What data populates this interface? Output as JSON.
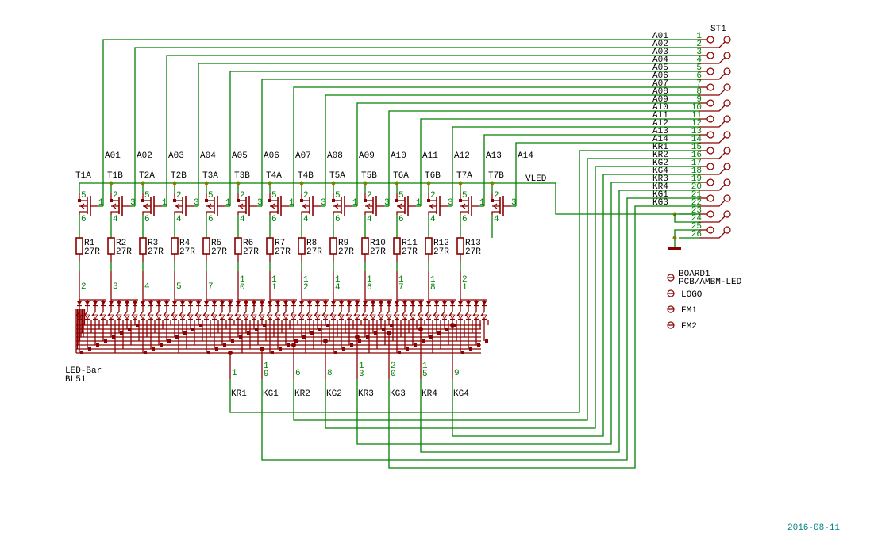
{
  "colors": {
    "wire": "#008000",
    "part": "#8c0000",
    "junction": "#808000",
    "text": "#000000",
    "date": "#008080"
  },
  "supply_net": "VLED",
  "signal_nets": [
    "A01",
    "A02",
    "A03",
    "A04",
    "A05",
    "A06",
    "A07",
    "A08",
    "A09",
    "A10",
    "A11",
    "A12",
    "A13",
    "A14"
  ],
  "transistors": [
    {
      "name": "T1A",
      "pins": [
        "5",
        "1",
        "6"
      ]
    },
    {
      "name": "T1B",
      "pins": [
        "2",
        "3",
        "4"
      ]
    },
    {
      "name": "T2A",
      "pins": [
        "5",
        "1",
        "6"
      ]
    },
    {
      "name": "T2B",
      "pins": [
        "2",
        "3",
        "4"
      ]
    },
    {
      "name": "T3A",
      "pins": [
        "5",
        "1",
        "6"
      ]
    },
    {
      "name": "T3B",
      "pins": [
        "2",
        "3",
        "4"
      ]
    },
    {
      "name": "T4A",
      "pins": [
        "5",
        "1",
        "6"
      ]
    },
    {
      "name": "T4B",
      "pins": [
        "2",
        "3",
        "4"
      ]
    },
    {
      "name": "T5A",
      "pins": [
        "5",
        "1",
        "6"
      ]
    },
    {
      "name": "T5B",
      "pins": [
        "2",
        "3",
        "4"
      ]
    },
    {
      "name": "T6A",
      "pins": [
        "5",
        "1",
        "6"
      ]
    },
    {
      "name": "T6B",
      "pins": [
        "2",
        "3",
        "4"
      ]
    },
    {
      "name": "T7A",
      "pins": [
        "5",
        "1",
        "6"
      ]
    },
    {
      "name": "T7B",
      "pins": [
        "2",
        "3",
        "4"
      ]
    }
  ],
  "resistors": [
    {
      "name": "R1",
      "value": "27R"
    },
    {
      "name": "R2",
      "value": "27R"
    },
    {
      "name": "R3",
      "value": "27R"
    },
    {
      "name": "R4",
      "value": "27R"
    },
    {
      "name": "R5",
      "value": "27R"
    },
    {
      "name": "R6",
      "value": "27R"
    },
    {
      "name": "R7",
      "value": "27R"
    },
    {
      "name": "R8",
      "value": "27R"
    },
    {
      "name": "R9",
      "value": "27R"
    },
    {
      "name": "R10",
      "value": "27R"
    },
    {
      "name": "R11",
      "value": "27R"
    },
    {
      "name": "R12",
      "value": "27R"
    },
    {
      "name": "R13",
      "value": "27R"
    }
  ],
  "led_bar": {
    "name": "LED-Bar",
    "value": "BL51",
    "anode_pins": [
      "2",
      "3",
      "4",
      "5",
      "7",
      "10",
      "11",
      "12",
      "14",
      "16",
      "17",
      "18",
      "21"
    ],
    "cathodes": [
      {
        "pin": "1",
        "net": "KR1"
      },
      {
        "pin": "19",
        "net": "KG1"
      },
      {
        "pin": "6",
        "net": "KR2"
      },
      {
        "pin": "8",
        "net": "KG2"
      },
      {
        "pin": "13",
        "net": "KR3"
      },
      {
        "pin": "20",
        "net": "KG3"
      },
      {
        "pin": "15",
        "net": "KR4"
      },
      {
        "pin": "9",
        "net": "KG4"
      }
    ]
  },
  "connector": {
    "name": "ST1",
    "pins": [
      {
        "num": "1",
        "net": "A01"
      },
      {
        "num": "2",
        "net": "A02"
      },
      {
        "num": "3",
        "net": "A03"
      },
      {
        "num": "4",
        "net": "A04"
      },
      {
        "num": "5",
        "net": "A05"
      },
      {
        "num": "6",
        "net": "A06"
      },
      {
        "num": "7",
        "net": "A07"
      },
      {
        "num": "8",
        "net": "A08"
      },
      {
        "num": "9",
        "net": "A09"
      },
      {
        "num": "10",
        "net": "A10"
      },
      {
        "num": "11",
        "net": "A11"
      },
      {
        "num": "12",
        "net": "A12"
      },
      {
        "num": "13",
        "net": "A13"
      },
      {
        "num": "14",
        "net": "A14"
      },
      {
        "num": "15",
        "net": "KR1"
      },
      {
        "num": "16",
        "net": "KR2"
      },
      {
        "num": "17",
        "net": "KG2"
      },
      {
        "num": "18",
        "net": "KG4"
      },
      {
        "num": "19",
        "net": "KR3"
      },
      {
        "num": "20",
        "net": "KR4"
      },
      {
        "num": "21",
        "net": "KG1"
      },
      {
        "num": "22",
        "net": "KG3"
      },
      {
        "num": "23",
        "net": ""
      },
      {
        "num": "24",
        "net": ""
      },
      {
        "num": "25",
        "net": ""
      },
      {
        "num": "26",
        "net": ""
      }
    ]
  },
  "board_parts": [
    {
      "name": "BOARD1",
      "value": "PCB/AMBM-LED"
    },
    {
      "name": "LOGO",
      "value": ""
    },
    {
      "name": "FM1",
      "value": ""
    },
    {
      "name": "FM2",
      "value": ""
    }
  ],
  "date": "2016-08-11"
}
